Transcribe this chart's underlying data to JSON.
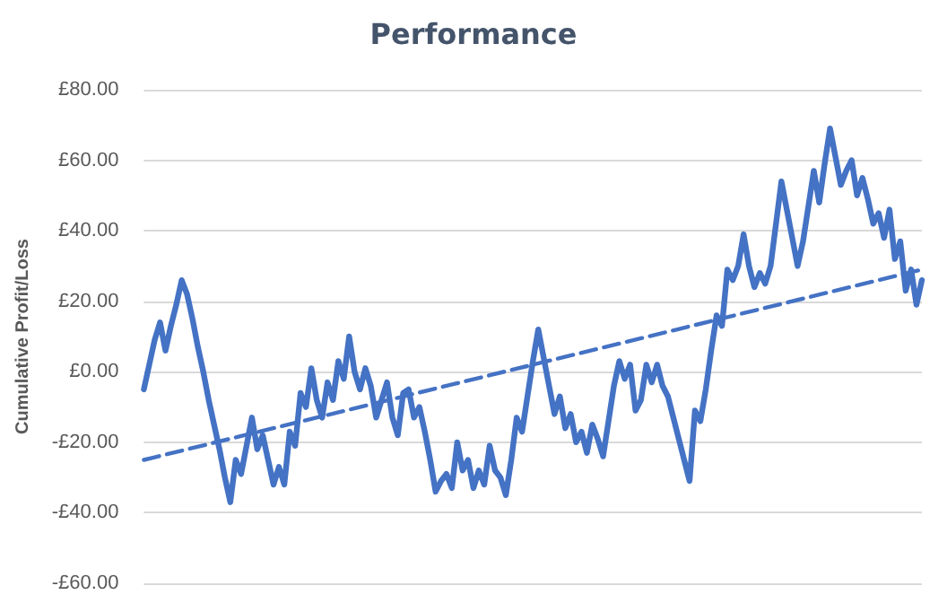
{
  "chart_data": {
    "type": "line",
    "title": "Performance",
    "ylabel": "Cumulative Profit/Loss",
    "categories": [
      null,
      null,
      null,
      null,
      null,
      null,
      null,
      null,
      null,
      null,
      null,
      null,
      null,
      null,
      null,
      null,
      null,
      null,
      null,
      null,
      null,
      null,
      null,
      null,
      null,
      null,
      null,
      null,
      null,
      null,
      null,
      null,
      null,
      null,
      null,
      null,
      null,
      null,
      null,
      null,
      null,
      null,
      null,
      null,
      null,
      null,
      null,
      null,
      null,
      null,
      null,
      null,
      null,
      null,
      null,
      null,
      null,
      null,
      null,
      null,
      null,
      null,
      null,
      null,
      null,
      null,
      null,
      null,
      null,
      null,
      null,
      null,
      null,
      null,
      null,
      null,
      null,
      null,
      null,
      null,
      null,
      null,
      null,
      null,
      null,
      null,
      null,
      null,
      null,
      null,
      null,
      null,
      null,
      null,
      null,
      null,
      null,
      null,
      null,
      null,
      null,
      null,
      null,
      null,
      null,
      null,
      null,
      null,
      null,
      null,
      null,
      null,
      null,
      null,
      null,
      null,
      null,
      null,
      null,
      null,
      null,
      null,
      null,
      null,
      null,
      null,
      null,
      null,
      null,
      null,
      null,
      null,
      null,
      null,
      null,
      null,
      null,
      null,
      null,
      null,
      null,
      null,
      null,
      null,
      null
    ],
    "series": [
      {
        "color": "#4472c4",
        "line_style": "solid",
        "values": [
          -5,
          2,
          9,
          14,
          6,
          13,
          19,
          26,
          22,
          15,
          7,
          0,
          -8,
          -15,
          -22,
          -30,
          -37,
          -25,
          -29,
          -21,
          -13,
          -22,
          -18,
          -25,
          -32,
          -27,
          -32,
          -17,
          -21,
          -6,
          -10,
          1,
          -8,
          -13,
          -3,
          -8,
          3,
          -2,
          10,
          0,
          -5,
          1,
          -4,
          -13,
          -8,
          -3,
          -13,
          -18,
          -6,
          -5,
          -13,
          -10,
          -17,
          -25,
          -34,
          -31,
          -29,
          -33,
          -20,
          -28,
          -25,
          -33,
          -28,
          -32,
          -21,
          -28,
          -30,
          -35,
          -25,
          -13,
          -17,
          -7,
          3,
          12,
          4,
          -4,
          -12,
          -7,
          -16,
          -12,
          -20,
          -17,
          -23,
          -15,
          -19,
          -24,
          -14,
          -4,
          3,
          -2,
          2,
          -11,
          -8,
          2,
          -3,
          2,
          -4,
          -7,
          -13,
          -19,
          -25,
          -31,
          -11,
          -14,
          -5,
          6,
          16,
          13,
          29,
          26,
          30,
          39,
          30,
          24,
          28,
          25,
          30,
          42,
          54,
          46,
          38,
          30,
          37,
          47,
          57,
          48,
          59,
          69,
          61,
          53,
          57,
          60,
          50,
          55,
          49,
          42,
          45,
          38,
          46,
          32,
          37,
          23,
          29,
          19,
          26
        ]
      },
      {
        "color": "#4472c4",
        "line_style": "dashed",
        "values": [
          -25,
          null,
          null,
          null,
          null,
          null,
          null,
          null,
          null,
          null,
          null,
          null,
          null,
          null,
          null,
          null,
          null,
          null,
          null,
          null,
          null,
          null,
          null,
          null,
          null,
          null,
          null,
          null,
          null,
          null,
          null,
          null,
          null,
          null,
          null,
          null,
          null,
          null,
          null,
          null,
          null,
          null,
          null,
          null,
          null,
          null,
          null,
          null,
          null,
          null,
          null,
          null,
          null,
          null,
          null,
          null,
          null,
          null,
          null,
          null,
          null,
          null,
          null,
          null,
          null,
          null,
          null,
          null,
          null,
          null,
          null,
          null,
          null,
          null,
          null,
          null,
          null,
          null,
          null,
          null,
          null,
          null,
          null,
          null,
          null,
          null,
          null,
          null,
          null,
          null,
          null,
          null,
          null,
          null,
          null,
          null,
          null,
          null,
          null,
          null,
          null,
          null,
          null,
          null,
          null,
          null,
          null,
          null,
          null,
          null,
          null,
          null,
          null,
          null,
          null,
          null,
          null,
          null,
          null,
          null,
          null,
          null,
          null,
          null,
          null,
          null,
          null,
          null,
          null,
          null,
          null,
          null,
          null,
          null,
          null,
          null,
          null,
          null,
          null,
          null,
          null,
          null,
          null,
          null,
          29
        ]
      }
    ],
    "ylim": [
      -60,
      80
    ],
    "yticks": [
      {
        "value": -60,
        "label": "-£60.00"
      },
      {
        "value": -40,
        "label": "-£40.00"
      },
      {
        "value": -20,
        "label": "-£20.00"
      },
      {
        "value": 0,
        "label": "£0.00"
      },
      {
        "value": 20,
        "label": "£20.00"
      },
      {
        "value": 40,
        "label": "£40.00"
      },
      {
        "value": 60,
        "label": "£60.00"
      },
      {
        "value": 80,
        "label": "£80.00"
      }
    ],
    "grid": "y",
    "tick_labels": "y"
  }
}
